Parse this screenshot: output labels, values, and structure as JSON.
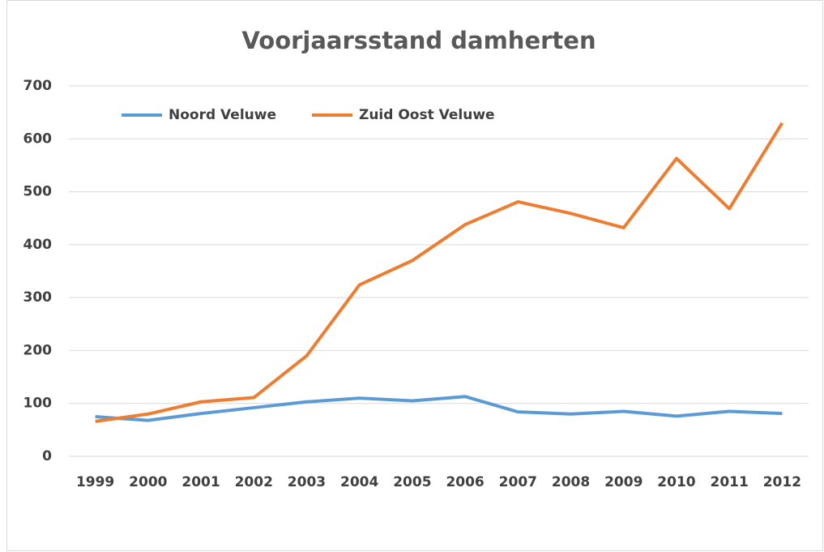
{
  "chart_data": {
    "type": "line",
    "title": "Voorjaarsstand damherten",
    "categories": [
      "1999",
      "2000",
      "2001",
      "2002",
      "2003",
      "2004",
      "2005",
      "2006",
      "2007",
      "2008",
      "2009",
      "2010",
      "2011",
      "2012"
    ],
    "series": [
      {
        "name": "Noord Veluwe",
        "color": "#5b9bd5",
        "values": [
          75,
          68,
          81,
          92,
          103,
          110,
          105,
          113,
          84,
          80,
          85,
          76,
          85,
          81
        ]
      },
      {
        "name": "Zuid Oost Veluwe",
        "color": "#ed7d31",
        "values": [
          66,
          80,
          103,
          111,
          190,
          324,
          370,
          438,
          481,
          459,
          432,
          563,
          468,
          630
        ]
      }
    ],
    "ylim": [
      0,
      700
    ],
    "yticks": [
      0,
      100,
      200,
      300,
      400,
      500,
      600,
      700
    ],
    "grid": true,
    "legend": "top-left"
  }
}
